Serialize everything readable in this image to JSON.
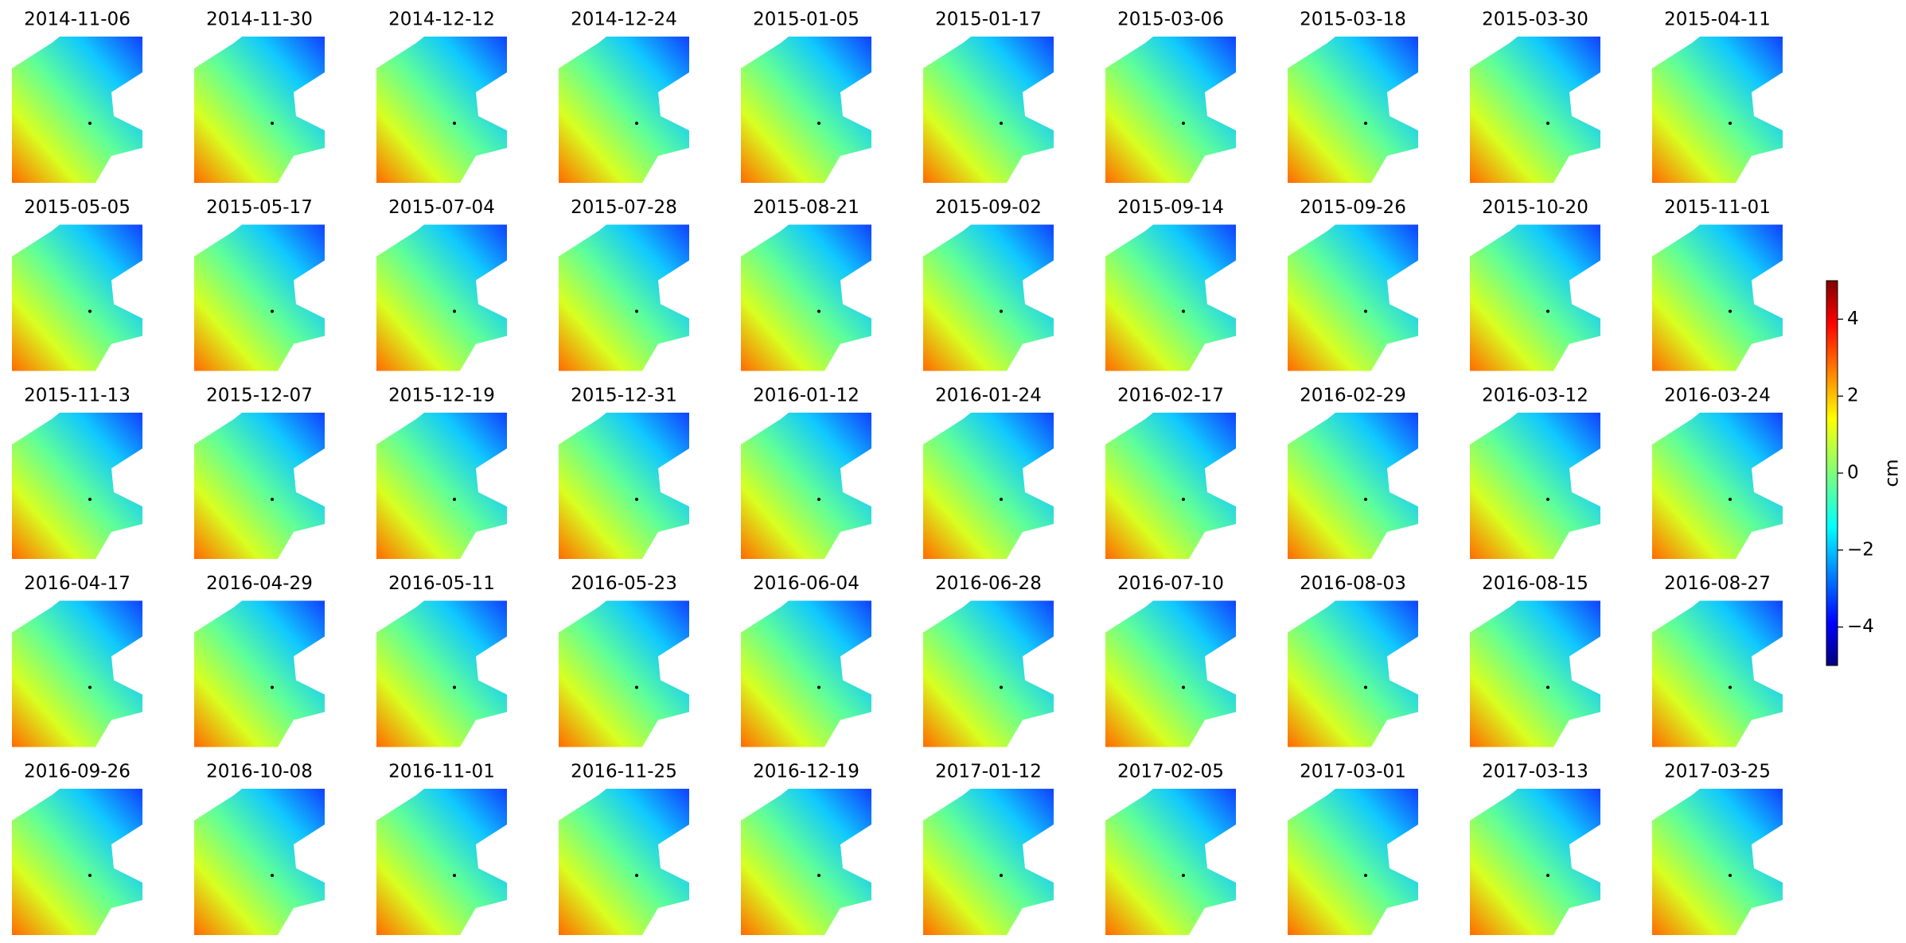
{
  "chart_data": {
    "type": "image-grid",
    "titles": [
      "2014-11-06",
      "2014-11-30",
      "2014-12-12",
      "2014-12-24",
      "2015-01-05",
      "2015-01-17",
      "2015-03-06",
      "2015-03-18",
      "2015-03-30",
      "2015-04-11",
      "2015-05-05",
      "2015-05-17",
      "2015-07-04",
      "2015-07-28",
      "2015-08-21",
      "2015-09-02",
      "2015-09-14",
      "2015-09-26",
      "2015-10-20",
      "2015-11-01",
      "2015-11-13",
      "2015-12-07",
      "2015-12-19",
      "2015-12-31",
      "2016-01-12",
      "2016-01-24",
      "2016-02-17",
      "2016-02-29",
      "2016-03-12",
      "2016-03-24",
      "2016-04-17",
      "2016-04-29",
      "2016-05-11",
      "2016-05-23",
      "2016-06-04",
      "2016-06-28",
      "2016-07-10",
      "2016-08-03",
      "2016-08-15",
      "2016-08-27",
      "2016-09-26",
      "2016-10-08",
      "2016-11-01",
      "2016-11-25",
      "2016-12-19",
      "2017-01-12",
      "2017-02-05",
      "2017-03-01",
      "2017-03-13",
      "2017-03-25"
    ],
    "colormap": "jet",
    "colorbar": {
      "label": "cm",
      "lim": [
        -5,
        5
      ],
      "ticks": [
        {
          "value": -4,
          "label": "−4"
        },
        {
          "value": -2,
          "label": "−2"
        },
        0,
        2,
        4
      ]
    }
  }
}
